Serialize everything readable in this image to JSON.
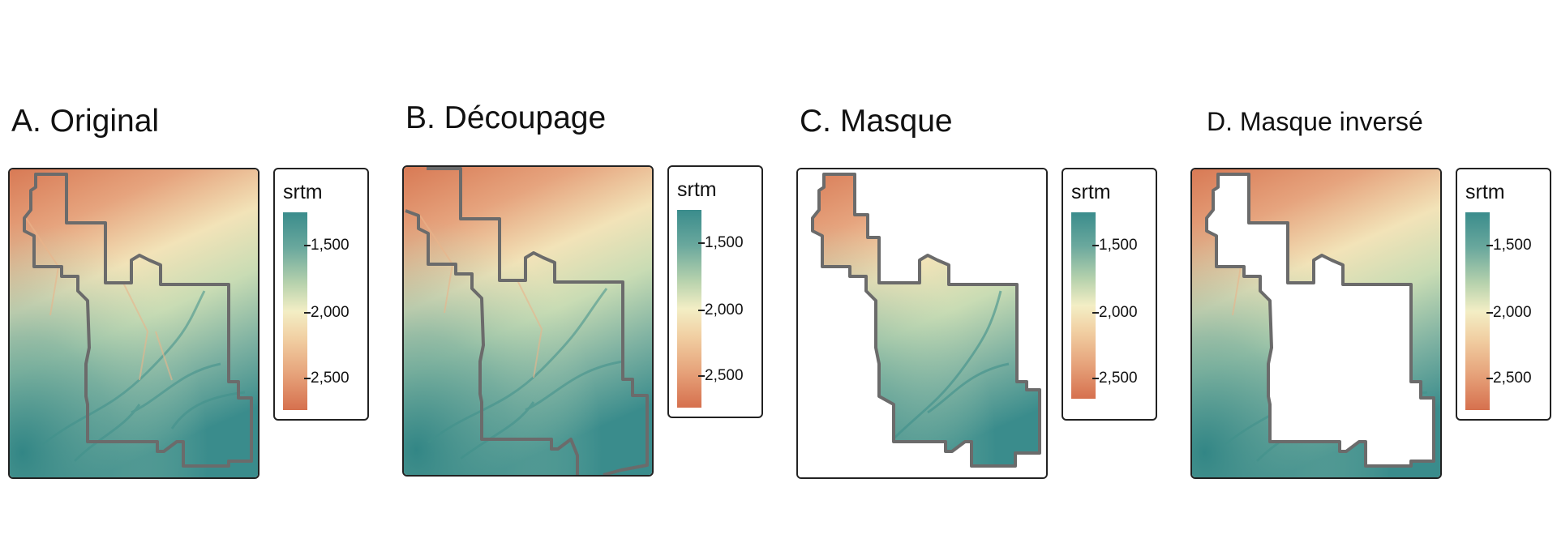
{
  "legend": {
    "title": "srtm",
    "ticks": [
      {
        "label": "1,500",
        "value": 1500
      },
      {
        "label": "2,000",
        "value": 2000
      },
      {
        "label": "2,500",
        "value": 2500
      }
    ],
    "value_range": [
      1250,
      2750
    ],
    "colors": [
      "#3a8c8c",
      "#6aa89d",
      "#b7d2ad",
      "#f3eec5",
      "#f1cfa2",
      "#e6a27a",
      "#d6704e"
    ]
  },
  "panels": [
    {
      "id": "a",
      "title": "A. Original",
      "variant": "full"
    },
    {
      "id": "b",
      "title": "B. Découpage",
      "variant": "crop"
    },
    {
      "id": "c",
      "title": "C. Masque",
      "variant": "mask"
    },
    {
      "id": "d",
      "title": "D. Masque inversé",
      "variant": "inverse"
    }
  ],
  "colors": {
    "boundary": "#6b6b6b",
    "frame": "#222222"
  }
}
